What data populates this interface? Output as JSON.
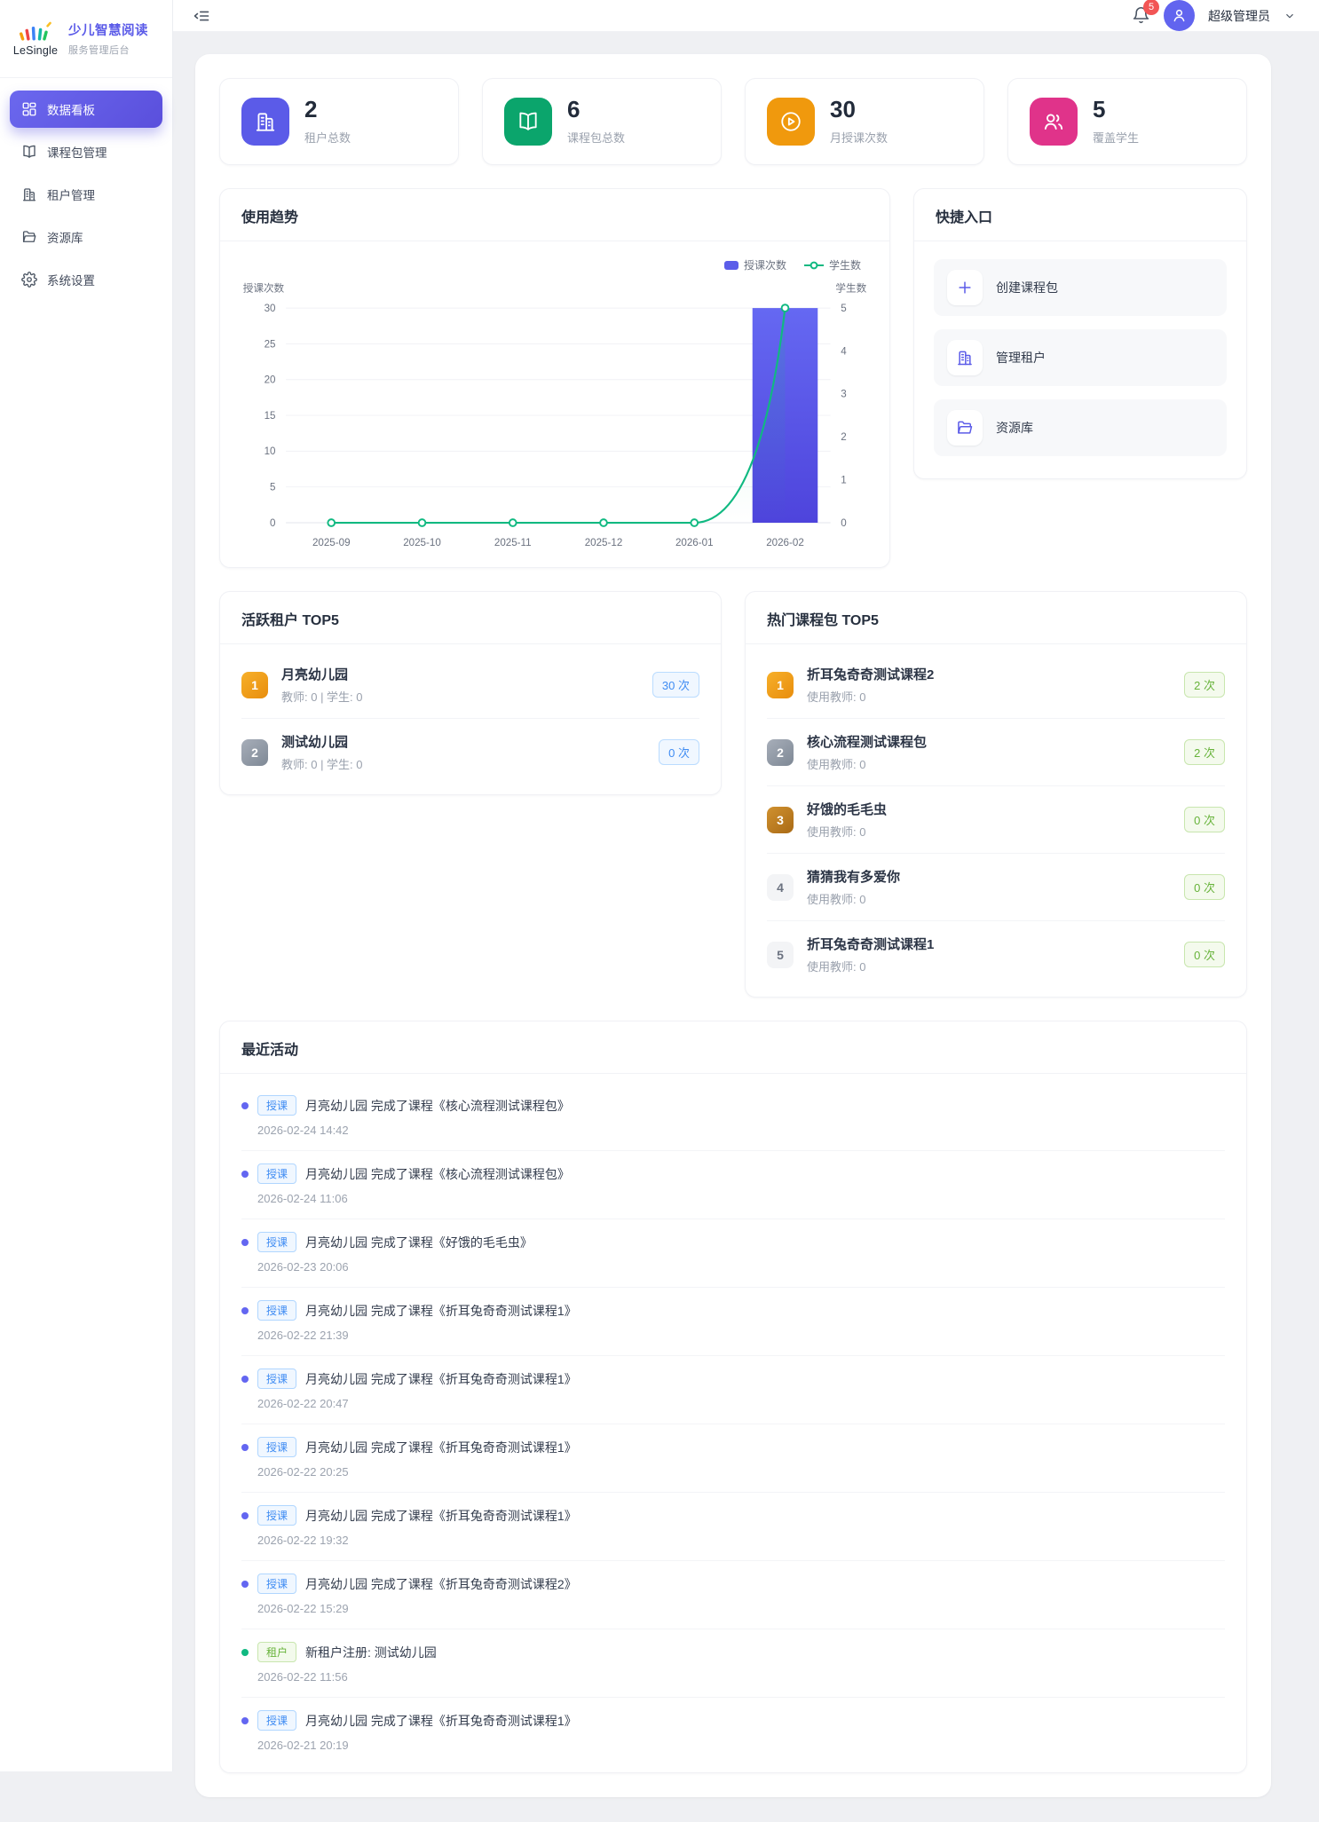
{
  "brand": {
    "logo_text": "LeSingle",
    "title": "少儿智慧阅读",
    "subtitle": "服务管理后台"
  },
  "header": {
    "notification_count": "5",
    "user_name": "超级管理员"
  },
  "sidebar": {
    "items": [
      {
        "name": "dashboard",
        "label": "数据看板",
        "icon": "dashboard-icon",
        "active": true
      },
      {
        "name": "course-packages",
        "label": "课程包管理",
        "icon": "book-icon",
        "active": false
      },
      {
        "name": "tenants",
        "label": "租户管理",
        "icon": "building-icon",
        "active": false
      },
      {
        "name": "resources",
        "label": "资源库",
        "icon": "folder-icon",
        "active": false
      },
      {
        "name": "settings",
        "label": "系统设置",
        "icon": "gear-icon",
        "active": false
      }
    ]
  },
  "stats": [
    {
      "key": "tenants",
      "value": "2",
      "label": "租户总数",
      "color": "#5b5be8",
      "icon": "building-icon"
    },
    {
      "key": "packages",
      "value": "6",
      "label": "课程包总数",
      "color": "#0ba56c",
      "icon": "book-icon"
    },
    {
      "key": "monthly-lessons",
      "value": "30",
      "label": "月授课次数",
      "color": "#f0990d",
      "icon": "play-circle-icon"
    },
    {
      "key": "students",
      "value": "5",
      "label": "覆盖学生",
      "color": "#e0338a",
      "icon": "users-icon"
    }
  ],
  "usage_trend": {
    "title": "使用趋势",
    "chart_data": {
      "type": "bar",
      "categories": [
        "2025-09",
        "2025-10",
        "2025-11",
        "2025-12",
        "2026-01",
        "2026-02"
      ],
      "series": [
        {
          "name": "授课次数",
          "type": "bar",
          "axis": "left",
          "values": [
            0,
            0,
            0,
            0,
            0,
            30
          ],
          "color": "#5b5de9"
        },
        {
          "name": "学生数",
          "type": "line",
          "axis": "right",
          "values": [
            0,
            0,
            0,
            0,
            0,
            5
          ],
          "color": "#10b981"
        }
      ],
      "left_axis": {
        "label": "授课次数",
        "ticks": [
          0,
          5,
          10,
          15,
          20,
          25,
          30
        ],
        "max": 30
      },
      "right_axis": {
        "label": "学生数",
        "ticks": [
          0,
          1,
          2,
          3,
          4,
          5
        ],
        "max": 5
      },
      "grid": true,
      "legend_position": "top-right"
    }
  },
  "quick_entry": {
    "title": "快捷入口",
    "items": [
      {
        "name": "create-package",
        "label": "创建课程包",
        "icon": "plus-icon"
      },
      {
        "name": "manage-tenants",
        "label": "管理租户",
        "icon": "building-icon"
      },
      {
        "name": "resources",
        "label": "资源库",
        "icon": "folder-icon"
      }
    ]
  },
  "active_tenants": {
    "title": "活跃租户 TOP5",
    "items": [
      {
        "rank": "1",
        "name": "月亮幼儿园",
        "meta": "教师: 0 | 学生: 0",
        "count": "30 次"
      },
      {
        "rank": "2",
        "name": "测试幼儿园",
        "meta": "教师: 0 | 学生: 0",
        "count": "0 次"
      }
    ]
  },
  "hot_packages": {
    "title": "热门课程包 TOP5",
    "items": [
      {
        "rank": "1",
        "name": "折耳兔奇奇测试课程2",
        "meta": "使用教师: 0",
        "count": "2 次"
      },
      {
        "rank": "2",
        "name": "核心流程测试课程包",
        "meta": "使用教师: 0",
        "count": "2 次"
      },
      {
        "rank": "3",
        "name": "好饿的毛毛虫",
        "meta": "使用教师: 0",
        "count": "0 次"
      },
      {
        "rank": "4",
        "name": "猜猜我有多爱你",
        "meta": "使用教师: 0",
        "count": "0 次"
      },
      {
        "rank": "5",
        "name": "折耳兔奇奇测试课程1",
        "meta": "使用教师: 0",
        "count": "0 次"
      }
    ]
  },
  "recent_activities": {
    "title": "最近活动",
    "items": [
      {
        "type": "lesson",
        "tag": "授课",
        "text": "月亮幼儿园 完成了课程《核心流程测试课程包》",
        "time": "2026-02-24 14:42"
      },
      {
        "type": "lesson",
        "tag": "授课",
        "text": "月亮幼儿园 完成了课程《核心流程测试课程包》",
        "time": "2026-02-24 11:06"
      },
      {
        "type": "lesson",
        "tag": "授课",
        "text": "月亮幼儿园 完成了课程《好饿的毛毛虫》",
        "time": "2026-02-23 20:06"
      },
      {
        "type": "lesson",
        "tag": "授课",
        "text": "月亮幼儿园 完成了课程《折耳兔奇奇测试课程1》",
        "time": "2026-02-22 21:39"
      },
      {
        "type": "lesson",
        "tag": "授课",
        "text": "月亮幼儿园 完成了课程《折耳兔奇奇测试课程1》",
        "time": "2026-02-22 20:47"
      },
      {
        "type": "lesson",
        "tag": "授课",
        "text": "月亮幼儿园 完成了课程《折耳兔奇奇测试课程1》",
        "time": "2026-02-22 20:25"
      },
      {
        "type": "lesson",
        "tag": "授课",
        "text": "月亮幼儿园 完成了课程《折耳兔奇奇测试课程1》",
        "time": "2026-02-22 19:32"
      },
      {
        "type": "lesson",
        "tag": "授课",
        "text": "月亮幼儿园 完成了课程《折耳兔奇奇测试课程2》",
        "time": "2026-02-22 15:29"
      },
      {
        "type": "tenant",
        "tag": "租户",
        "text": "新租户注册: 测试幼儿园",
        "time": "2026-02-22 11:56"
      },
      {
        "type": "lesson",
        "tag": "授课",
        "text": "月亮幼儿园 完成了课程《折耳兔奇奇测试课程1》",
        "time": "2026-02-21 20:19"
      }
    ]
  }
}
